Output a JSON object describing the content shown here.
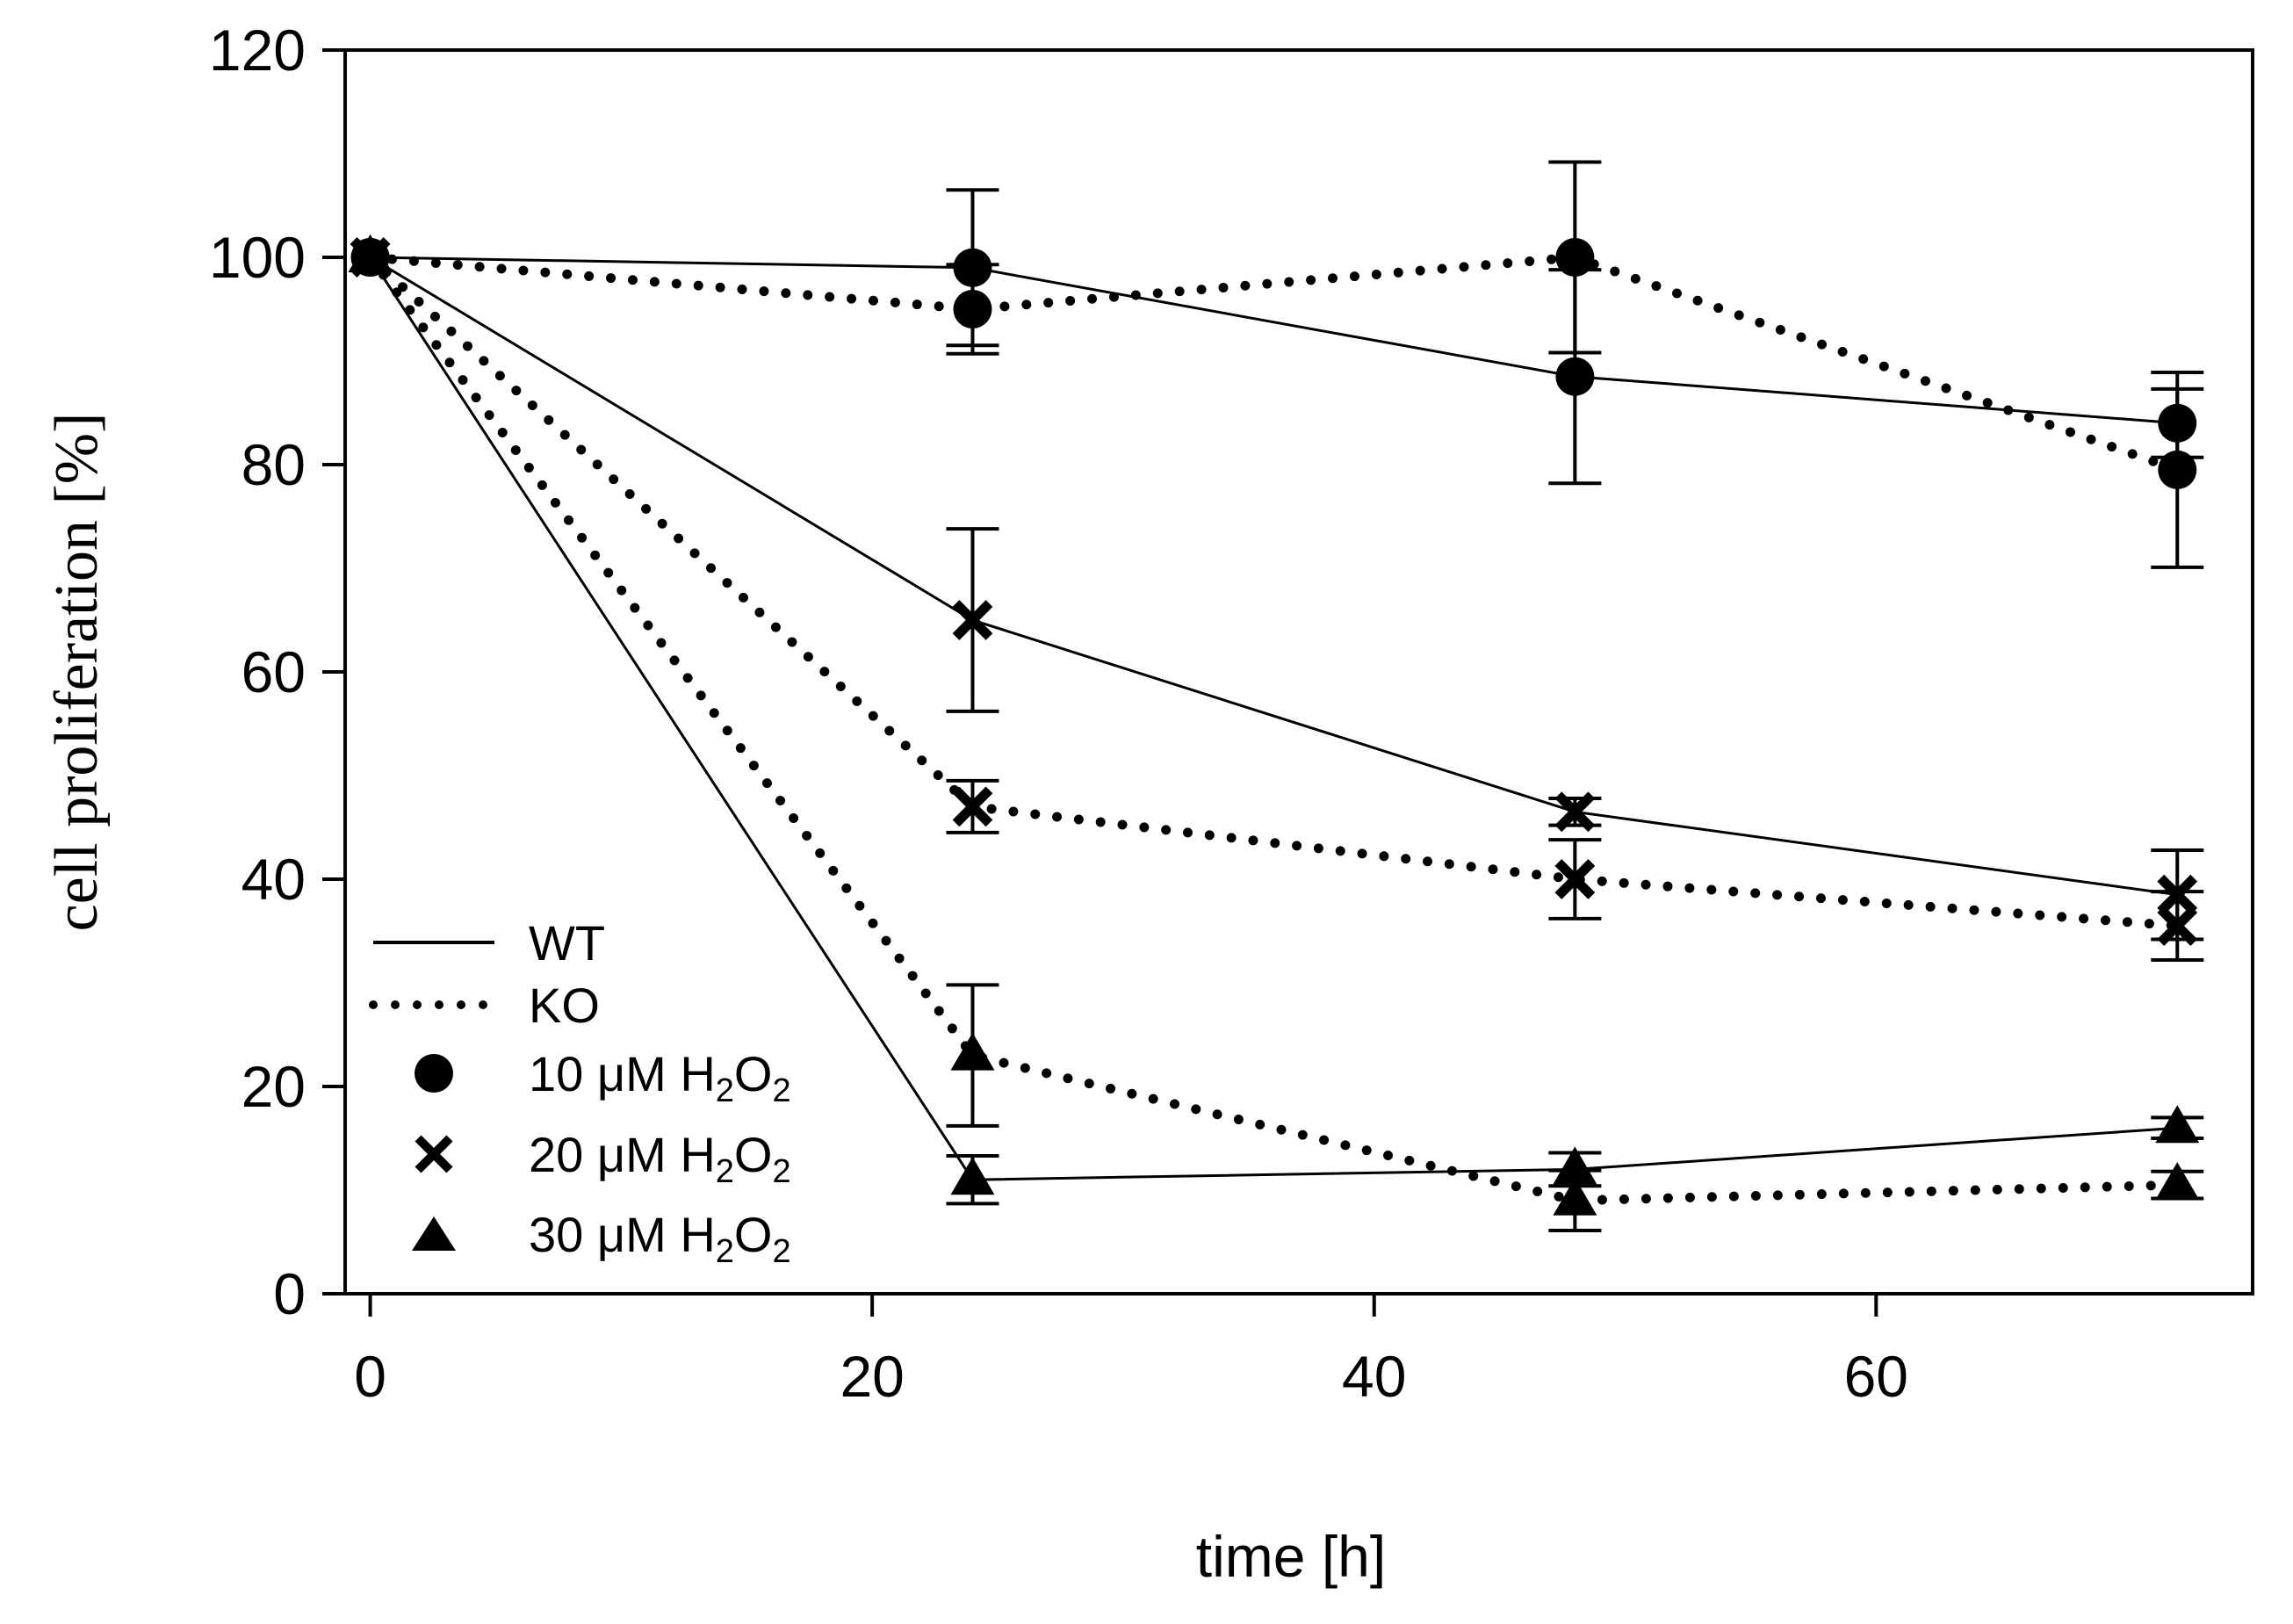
{
  "chart_data": {
    "type": "line",
    "title": "",
    "xlabel": "time [h]",
    "ylabel": "cell proliferation [%]",
    "xlim": [
      -1,
      75
    ],
    "ylim": [
      0,
      120
    ],
    "xticks": [
      0,
      20,
      40,
      60
    ],
    "yticks": [
      0,
      20,
      40,
      60,
      80,
      100,
      120
    ],
    "x": [
      0,
      24,
      48,
      72
    ],
    "legend_position": "lower-left",
    "legend": {
      "lines": [
        {
          "label": "WT",
          "style": "solid"
        },
        {
          "label": "KO",
          "style": "dotted"
        }
      ],
      "markers": [
        {
          "marker": "circle",
          "prefix": "10 μM H",
          "sub1": "2",
          "mid": "O",
          "sub2": "2"
        },
        {
          "marker": "x",
          "prefix": "20 μM H",
          "sub1": "2",
          "mid": "O",
          "sub2": "2"
        },
        {
          "marker": "triangle",
          "prefix": "30 μM H",
          "sub1": "2",
          "mid": "O",
          "sub2": "2"
        }
      ]
    },
    "series": [
      {
        "name": "WT 10 μM H2O2",
        "genotype": "WT",
        "marker": "circle",
        "style": "solid",
        "values": [
          100,
          99,
          88.5,
          84
        ],
        "errors": [
          0,
          7.5,
          10.3,
          3.3
        ]
      },
      {
        "name": "KO 10 μM H2O2",
        "genotype": "KO",
        "marker": "circle",
        "style": "dotted",
        "values": [
          100,
          95,
          100,
          79.5
        ],
        "errors": [
          0,
          4.3,
          9.2,
          9.4
        ]
      },
      {
        "name": "WT 20 μM H2O2",
        "genotype": "WT",
        "marker": "x",
        "style": "solid",
        "values": [
          100,
          65,
          46.5,
          38.5
        ],
        "errors": [
          0,
          8.8,
          1.3,
          4.3
        ]
      },
      {
        "name": "KO 20 μM H2O2",
        "genotype": "KO",
        "marker": "x",
        "style": "dotted",
        "values": [
          100,
          47,
          40,
          35.5
        ],
        "errors": [
          0,
          2.5,
          3.8,
          3.3
        ]
      },
      {
        "name": "WT 30 μM H2O2",
        "genotype": "WT",
        "marker": "triangle",
        "style": "solid",
        "values": [
          100,
          11,
          12,
          16
        ],
        "errors": [
          0,
          2.3,
          1.6,
          1.0
        ]
      },
      {
        "name": "KO 30 μM H2O2",
        "genotype": "KO",
        "marker": "triangle",
        "style": "dotted",
        "values": [
          100,
          23,
          9,
          10.5
        ],
        "errors": [
          0,
          6.8,
          2.9,
          1.3
        ]
      }
    ]
  }
}
